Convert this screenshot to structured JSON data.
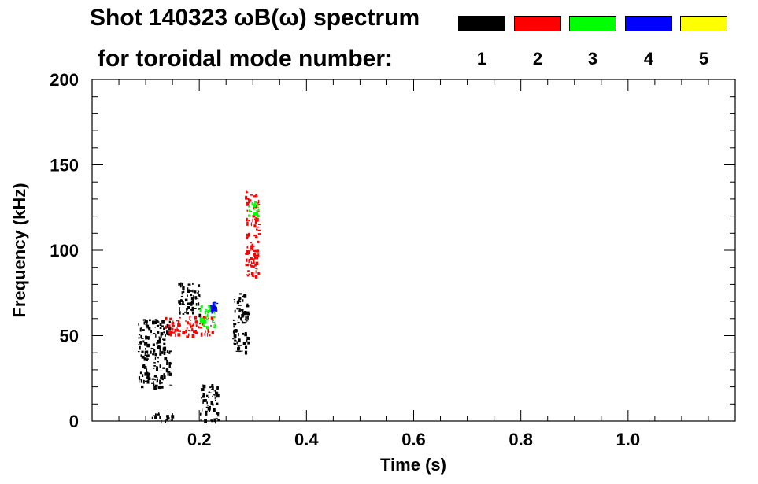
{
  "chart_data": {
    "type": "heatmap",
    "title_line1": "Shot 140323 ωB(ω) spectrum",
    "title_line2": "for toroidal mode number:",
    "xlabel": "Time (s)",
    "ylabel": "Frequency (kHz)",
    "xlim": [
      0.0,
      1.2
    ],
    "ylim": [
      0,
      200
    ],
    "x_ticks": [
      {
        "value": 0.2,
        "label": "0.2"
      },
      {
        "value": 0.4,
        "label": "0.4"
      },
      {
        "value": 0.6,
        "label": "0.6"
      },
      {
        "value": 0.8,
        "label": "0.8"
      },
      {
        "value": 1.0,
        "label": "1.0"
      }
    ],
    "y_ticks": [
      {
        "value": 0,
        "label": "0"
      },
      {
        "value": 50,
        "label": "50"
      },
      {
        "value": 100,
        "label": "100"
      },
      {
        "value": 150,
        "label": "150"
      },
      {
        "value": 200,
        "label": "200"
      }
    ],
    "legend": [
      {
        "mode": "1",
        "color": "#000000"
      },
      {
        "mode": "2",
        "color": "#ff0000"
      },
      {
        "mode": "3",
        "color": "#00ff00"
      },
      {
        "mode": "4",
        "color": "#0000ff"
      },
      {
        "mode": "5",
        "color": "#ffff00"
      }
    ],
    "features": [
      {
        "mode": "1",
        "t": [
          0.085,
          0.145
        ],
        "f": [
          20,
          60
        ]
      },
      {
        "mode": "1",
        "t": [
          0.16,
          0.2
        ],
        "f": [
          62,
          82
        ]
      },
      {
        "mode": "1",
        "t": [
          0.2,
          0.235
        ],
        "f": [
          0,
          22
        ]
      },
      {
        "mode": "1",
        "t": [
          0.26,
          0.29
        ],
        "f": [
          40,
          75
        ]
      },
      {
        "mode": "1",
        "t": [
          0.11,
          0.15
        ],
        "f": [
          0,
          5
        ]
      },
      {
        "mode": "2",
        "t": [
          0.135,
          0.225
        ],
        "f": [
          50,
          62
        ]
      },
      {
        "mode": "2",
        "t": [
          0.285,
          0.31
        ],
        "f": [
          85,
          135
        ]
      },
      {
        "mode": "3",
        "t": [
          0.29,
          0.31
        ],
        "f": [
          120,
          130
        ]
      },
      {
        "mode": "3",
        "t": [
          0.2,
          0.23
        ],
        "f": [
          55,
          70
        ]
      },
      {
        "mode": "4",
        "t": [
          0.22,
          0.23
        ],
        "f": [
          65,
          70
        ]
      }
    ]
  }
}
